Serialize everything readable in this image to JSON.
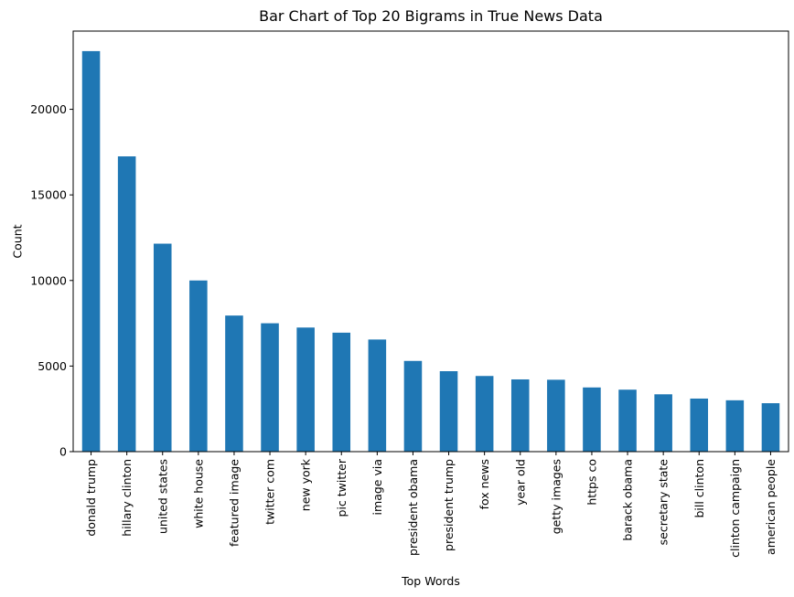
{
  "chart_data": {
    "type": "bar",
    "title": "Bar Chart of Top 20 Bigrams in True News Data",
    "xlabel": "Top Words",
    "ylabel": "Count",
    "categories": [
      "donald trump",
      "hillary clinton",
      "united states",
      "white house",
      "featured image",
      "twitter com",
      "new york",
      "pic twitter",
      "image via",
      "president obama",
      "president trump",
      "fox news",
      "year old",
      "getty images",
      "https co",
      "barack obama",
      "secretary state",
      "bill clinton",
      "clinton campaign",
      "american people"
    ],
    "values": [
      23400,
      17250,
      12150,
      10000,
      7950,
      7500,
      7250,
      6950,
      6550,
      5300,
      4700,
      4420,
      4220,
      4200,
      3750,
      3620,
      3350,
      3100,
      3000,
      2830
    ],
    "ylim": [
      0,
      24570
    ],
    "yticks": [
      0,
      5000,
      10000,
      15000,
      20000
    ],
    "ytick_labels": [
      "0",
      "5000",
      "10000",
      "15000",
      "20000"
    ],
    "grid": false,
    "legend": "none",
    "colors": {
      "bar": "#1f77b4",
      "axis": "#000000",
      "background": "#ffffff"
    }
  }
}
